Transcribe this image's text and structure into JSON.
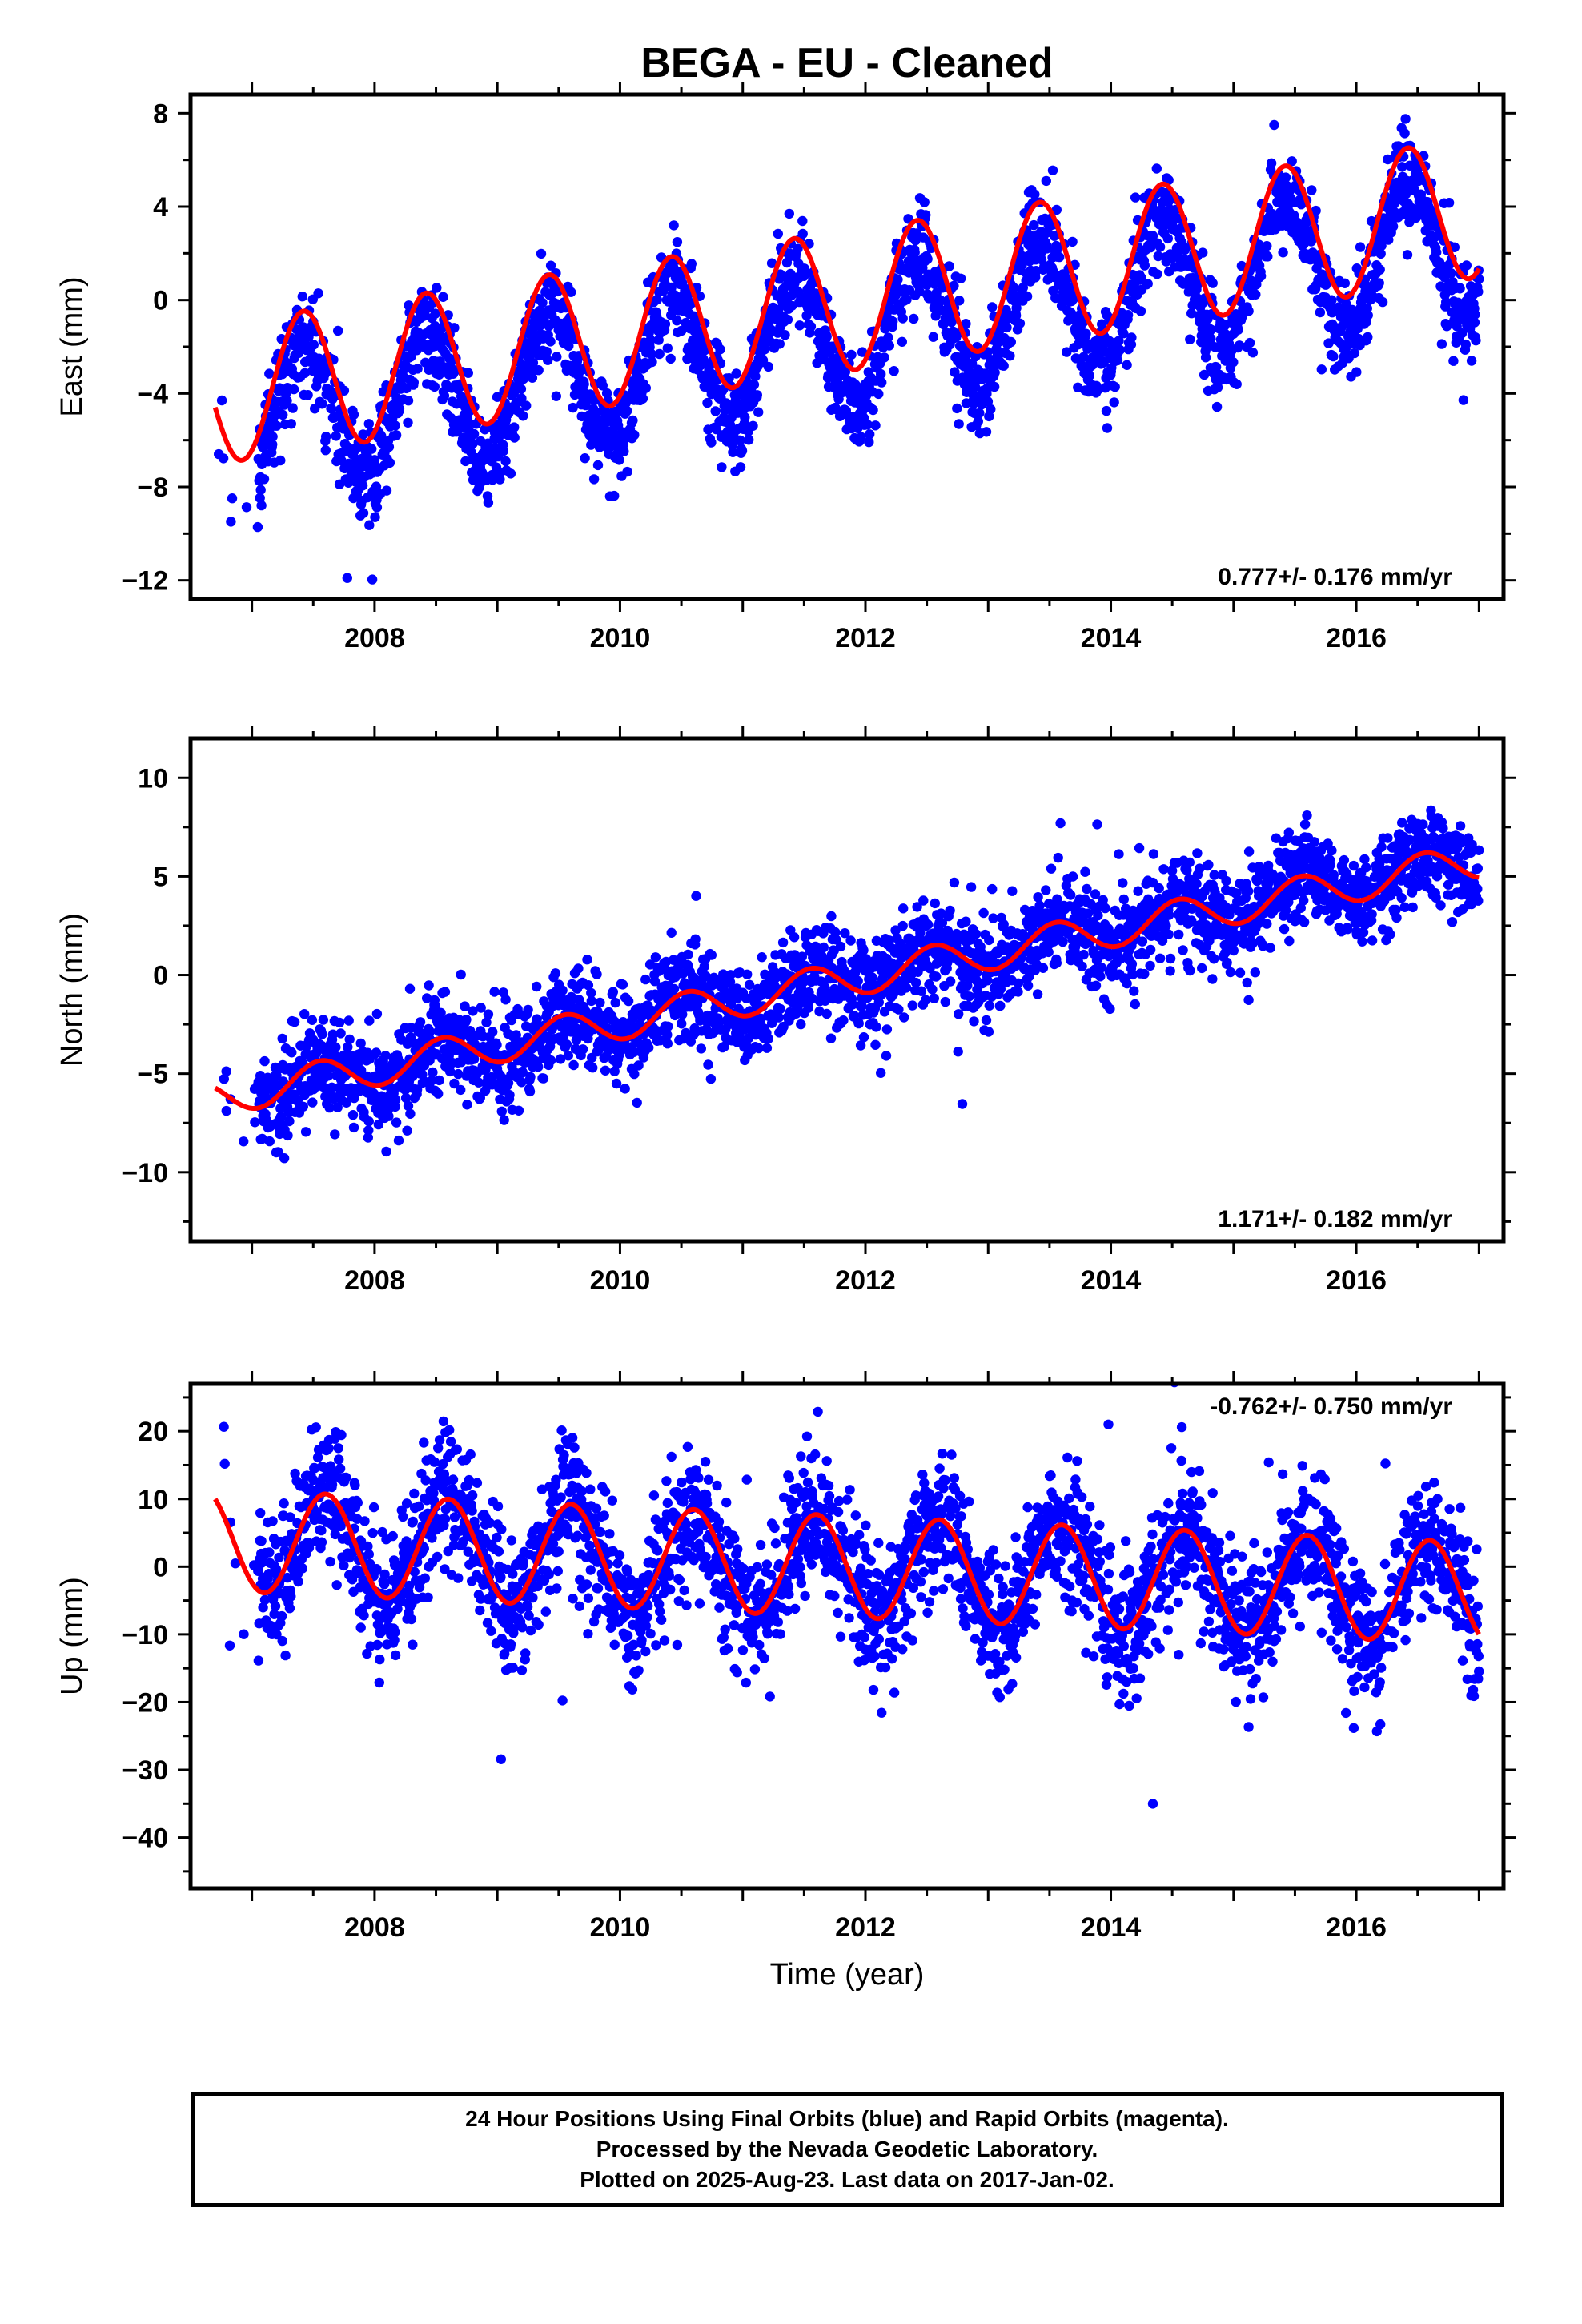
{
  "title": "BEGA  - EU - Cleaned",
  "xlabel": "Time (year)",
  "footer": {
    "lines": [
      "24 Hour Positions Using Final Orbits (blue) and Rapid Orbits (magenta).",
      "Processed by the Nevada Geodetic Laboratory.",
      "Plotted on 2025-Aug-23. Last data on 2017-Jan-02."
    ]
  },
  "colors": {
    "points": "#0000ff",
    "model": "#ff0000",
    "frame": "#000000"
  },
  "chart_data": [
    {
      "type": "scatter",
      "ylabel": "East (mm)",
      "rate_label": "0.777+/- 0.176 mm/yr",
      "rate_position": "bottom-right",
      "xlim": [
        2006.5,
        2017.2
      ],
      "ylim": [
        -12.8,
        8.8
      ],
      "x_ticks": [
        "2008",
        "2010",
        "2012",
        "2014",
        "2016"
      ],
      "y_ticks": [
        "8",
        "4",
        "0",
        "−4",
        "−8",
        "−12"
      ],
      "y_tick_values": [
        8,
        4,
        0,
        -4,
        -8,
        -12
      ],
      "data_start": 2006.7,
      "data_end": 2017.0,
      "series": [
        {
          "kind": "points",
          "trend": {
            "value_at_2007": -5.3,
            "rate": 0.777
          },
          "annual": {
            "amplitude": 3.0,
            "peak": 0.42
          },
          "scatter_sigma": 1.05
        },
        {
          "kind": "model",
          "trend": {
            "value_at_2007": -3.8,
            "rate": 0.777
          },
          "annual": {
            "amplitude": 3.0,
            "peak": 0.42
          }
        }
      ]
    },
    {
      "type": "scatter",
      "ylabel": "North (mm)",
      "rate_label": "1.171+/- 0.182 mm/yr",
      "rate_position": "bottom-right",
      "xlim": [
        2006.5,
        2017.2
      ],
      "ylim": [
        -13.5,
        12
      ],
      "x_ticks": [
        "2008",
        "2010",
        "2012",
        "2014",
        "2016"
      ],
      "y_ticks": [
        "10",
        "5",
        "0",
        "−5",
        "−10"
      ],
      "y_tick_values": [
        10,
        5,
        0,
        -5,
        -10
      ],
      "data_start": 2006.7,
      "data_end": 2017.0,
      "series": [
        {
          "kind": "points",
          "trend": {
            "value_at_2007": -5.9,
            "rate": 1.171
          },
          "annual": {
            "amplitude": 0.9,
            "peak": 0.55
          },
          "scatter_sigma": 1.2
        },
        {
          "kind": "model",
          "trend": {
            "value_at_2007": -5.9,
            "rate": 1.171
          },
          "annual": {
            "amplitude": 0.9,
            "peak": 0.55
          }
        }
      ]
    },
    {
      "type": "scatter",
      "ylabel": "Up (mm)",
      "rate_label": "-0.762+/- 0.750 mm/yr",
      "rate_position": "top-right",
      "xlim": [
        2006.5,
        2017.2
      ],
      "ylim": [
        -47.5,
        27
      ],
      "x_ticks": [
        "2008",
        "2010",
        "2012",
        "2014",
        "2016"
      ],
      "y_ticks": [
        "20",
        "10",
        "0",
        "−10",
        "−20",
        "−30",
        "−40"
      ],
      "y_tick_values": [
        20,
        10,
        0,
        -10,
        -20,
        -30,
        -40
      ],
      "data_start": 2006.7,
      "data_end": 2017.0,
      "series": [
        {
          "kind": "points",
          "trend": {
            "value_at_2007": 3.7,
            "rate": -0.762
          },
          "annual": {
            "amplitude": 7.5,
            "peak": 0.6
          },
          "scatter_sigma": 5.0
        },
        {
          "kind": "model",
          "trend": {
            "value_at_2007": 3.7,
            "rate": -0.762
          },
          "annual": {
            "amplitude": 7.5,
            "peak": 0.6
          }
        }
      ]
    }
  ]
}
